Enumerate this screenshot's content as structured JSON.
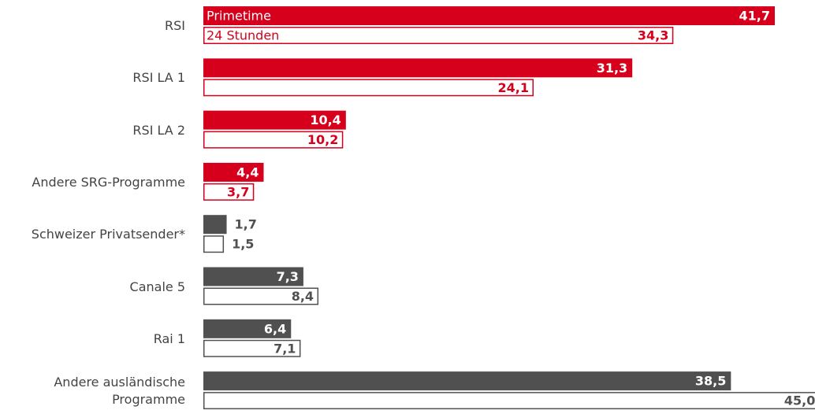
{
  "chart_data": {
    "type": "hbar",
    "categories": [
      "RSI",
      "RSI LA 1",
      "RSI LA 2",
      "Andere SRG-Programme",
      "Schweizer Privatsender*",
      "Canale 5",
      "Rai 1",
      "Andere ausländische Programme"
    ],
    "category_colors": [
      "#d6001c",
      "#d6001c",
      "#d6001c",
      "#d6001c",
      "#505050",
      "#505050",
      "#505050",
      "#505050"
    ],
    "series": [
      {
        "name": "Primetime",
        "style": "filled",
        "values": [
          41.7,
          31.3,
          10.4,
          4.4,
          1.7,
          7.3,
          6.4,
          38.5
        ],
        "value_labels": [
          "41,7",
          "31,3",
          "10,4",
          "4,4",
          "1,7",
          "7,3",
          "6,4",
          "38,5"
        ]
      },
      {
        "name": "24 Stunden",
        "style": "outline",
        "values": [
          34.3,
          24.1,
          10.2,
          3.7,
          1.5,
          8.4,
          7.1,
          45.0
        ],
        "value_labels": [
          "34,3",
          "24,1",
          "10,2",
          "3,7",
          "1,5",
          "8,4",
          "7,1",
          "45,0"
        ]
      }
    ]
  }
}
